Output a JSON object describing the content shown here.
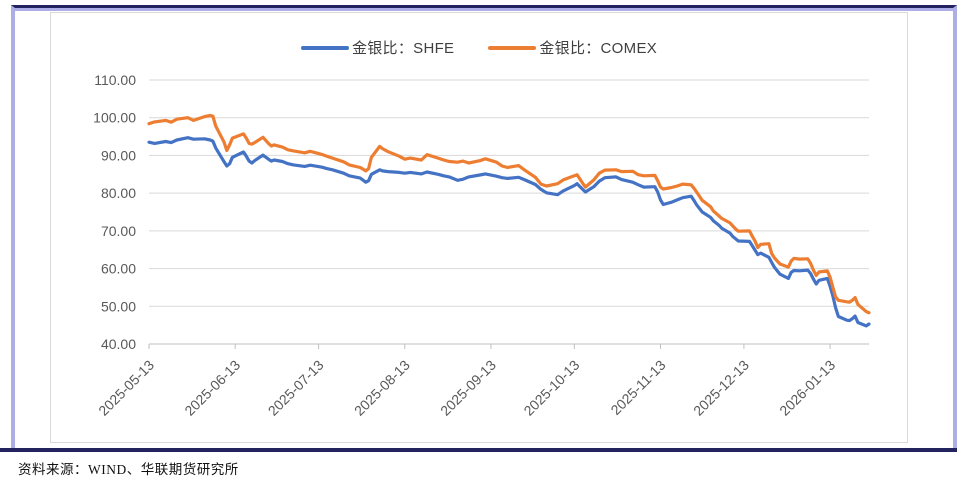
{
  "footer": {
    "source_label": "资料来源：WIND、华联期货研究所"
  },
  "colors": {
    "frame_accent_navy": "#23235f",
    "frame_light_periwinkle": "#aeaee6",
    "gridline": "#d9d9d9",
    "axis_line": "#bfbfbf",
    "tick_label": "#595959",
    "series_shfe": "#4472C4",
    "series_comex": "#ED7D31"
  },
  "chart_data": {
    "type": "line",
    "title": "",
    "xlabel": "",
    "ylabel": "",
    "ylim": [
      40,
      110
    ],
    "y_grid_step": 10,
    "grid": "horizontal",
    "legend_position": "top-center",
    "x_range": [
      "2025-05-13",
      "2026-01-27"
    ],
    "x_tick_labels": [
      "2025-05-13",
      "2025-06-13",
      "2025-07-13",
      "2025-08-13",
      "2025-09-13",
      "2025-10-13",
      "2025-11-13",
      "2025-12-13",
      "2026-01-13"
    ],
    "y_tick_labels": [
      "110.00",
      "100.00",
      "90.00",
      "80.00",
      "70.00",
      "60.00",
      "50.00",
      "40.00"
    ],
    "dates": [
      "2025-05-13",
      "2025-05-15",
      "2025-05-19",
      "2025-05-21",
      "2025-05-23",
      "2025-05-27",
      "2025-05-29",
      "2025-06-02",
      "2025-06-04",
      "2025-06-05",
      "2025-06-06",
      "2025-06-09",
      "2025-06-10",
      "2025-06-11",
      "2025-06-12",
      "2025-06-16",
      "2025-06-17",
      "2025-06-18",
      "2025-06-19",
      "2025-06-20",
      "2025-06-23",
      "2025-06-25",
      "2025-06-26",
      "2025-06-27",
      "2025-06-30",
      "2025-07-02",
      "2025-07-04",
      "2025-07-08",
      "2025-07-10",
      "2025-07-14",
      "2025-07-16",
      "2025-07-18",
      "2025-07-22",
      "2025-07-24",
      "2025-07-28",
      "2025-07-30",
      "2025-07-31",
      "2025-08-01",
      "2025-08-04",
      "2025-08-05",
      "2025-08-07",
      "2025-08-11",
      "2025-08-13",
      "2025-08-15",
      "2025-08-19",
      "2025-08-21",
      "2025-08-25",
      "2025-08-27",
      "2025-08-29",
      "2025-09-01",
      "2025-09-03",
      "2025-09-05",
      "2025-09-09",
      "2025-09-11",
      "2025-09-15",
      "2025-09-17",
      "2025-09-19",
      "2025-09-23",
      "2025-09-25",
      "2025-09-29",
      "2025-10-01",
      "2025-10-03",
      "2025-10-07",
      "2025-10-09",
      "2025-10-13",
      "2025-10-14",
      "2025-10-16",
      "2025-10-17",
      "2025-10-20",
      "2025-10-22",
      "2025-10-24",
      "2025-10-28",
      "2025-10-30",
      "2025-11-03",
      "2025-11-05",
      "2025-11-07",
      "2025-11-11",
      "2025-11-12",
      "2025-11-13",
      "2025-11-14",
      "2025-11-17",
      "2025-11-19",
      "2025-11-21",
      "2025-11-24",
      "2025-11-25",
      "2025-11-26",
      "2025-11-28",
      "2025-12-01",
      "2025-12-02",
      "2025-12-04",
      "2025-12-05",
      "2025-12-08",
      "2025-12-09",
      "2025-12-10",
      "2025-12-11",
      "2025-12-15",
      "2025-12-16",
      "2025-12-17",
      "2025-12-18",
      "2025-12-19",
      "2025-12-22",
      "2025-12-23",
      "2025-12-24",
      "2025-12-26",
      "2025-12-29",
      "2025-12-30",
      "2025-12-31",
      "2026-01-02",
      "2026-01-05",
      "2026-01-06",
      "2026-01-07",
      "2026-01-08",
      "2026-01-09",
      "2026-01-12",
      "2026-01-13",
      "2026-01-14",
      "2026-01-15",
      "2026-01-16",
      "2026-01-19",
      "2026-01-20",
      "2026-01-21",
      "2026-01-22",
      "2026-01-23",
      "2026-01-26",
      "2026-01-27"
    ],
    "series": [
      {
        "name": "金银比：SHFE",
        "color": "#4472C4",
        "values": [
          93.5,
          93.2,
          93.7,
          93.4,
          94.1,
          94.7,
          94.3,
          94.4,
          94.1,
          93.8,
          92.0,
          88.3,
          87.2,
          87.8,
          89.5,
          90.9,
          89.8,
          88.5,
          88.0,
          88.6,
          90.1,
          89.0,
          88.5,
          88.8,
          88.4,
          87.8,
          87.5,
          87.1,
          87.4,
          86.9,
          86.5,
          86.2,
          85.3,
          84.6,
          84.0,
          82.9,
          83.3,
          85.0,
          86.2,
          85.9,
          85.7,
          85.5,
          85.3,
          85.5,
          85.1,
          85.6,
          85.0,
          84.6,
          84.3,
          83.4,
          83.7,
          84.3,
          84.8,
          85.1,
          84.5,
          84.1,
          83.9,
          84.2,
          83.6,
          82.3,
          81.0,
          80.1,
          79.6,
          80.6,
          82.0,
          82.5,
          81.0,
          80.3,
          81.7,
          83.2,
          84.1,
          84.3,
          83.6,
          82.9,
          82.2,
          81.6,
          81.7,
          80.3,
          78.2,
          77.0,
          77.6,
          78.2,
          78.8,
          79.2,
          78.1,
          76.9,
          75.0,
          73.6,
          72.7,
          71.5,
          70.7,
          69.4,
          68.5,
          67.9,
          67.3,
          67.2,
          66.1,
          64.9,
          63.7,
          64.1,
          63.0,
          61.6,
          60.3,
          58.5,
          57.4,
          59.0,
          59.5,
          59.4,
          59.6,
          58.7,
          57.2,
          55.9,
          56.9,
          57.4,
          55.3,
          52.7,
          49.6,
          47.3,
          46.3,
          46.2,
          46.7,
          47.4,
          45.7,
          44.8,
          45.3
        ]
      },
      {
        "name": "金银比：COMEX",
        "color": "#ED7D31",
        "values": [
          98.4,
          98.9,
          99.3,
          98.8,
          99.6,
          100.0,
          99.3,
          100.3,
          100.6,
          100.4,
          97.8,
          93.5,
          91.3,
          92.8,
          94.6,
          95.7,
          94.6,
          93.2,
          93.0,
          93.4,
          94.8,
          93.2,
          92.5,
          92.8,
          92.2,
          91.5,
          91.2,
          90.7,
          91.1,
          90.3,
          89.8,
          89.3,
          88.3,
          87.5,
          86.8,
          85.9,
          86.5,
          89.5,
          92.4,
          91.8,
          91.0,
          89.8,
          89.0,
          89.3,
          88.8,
          90.2,
          89.3,
          88.8,
          88.4,
          88.2,
          88.5,
          88.0,
          88.6,
          89.1,
          88.2,
          87.2,
          86.8,
          87.3,
          86.2,
          84.2,
          82.4,
          81.9,
          82.5,
          83.5,
          84.6,
          84.9,
          82.6,
          81.6,
          83.5,
          85.3,
          86.1,
          86.2,
          85.7,
          85.8,
          84.9,
          84.6,
          84.7,
          83.3,
          81.6,
          81.1,
          81.5,
          81.9,
          82.4,
          82.2,
          81.3,
          80.3,
          78.1,
          76.4,
          75.3,
          74.0,
          73.3,
          72.1,
          71.3,
          70.5,
          69.9,
          70.0,
          68.6,
          67.3,
          65.6,
          66.4,
          66.6,
          64.0,
          62.8,
          61.2,
          60.4,
          62.0,
          62.7,
          62.5,
          62.6,
          61.4,
          59.6,
          58.2,
          59.1,
          59.4,
          57.7,
          55.0,
          52.5,
          51.6,
          51.2,
          51.1,
          51.6,
          52.3,
          50.5,
          48.6,
          48.3
        ]
      }
    ]
  }
}
